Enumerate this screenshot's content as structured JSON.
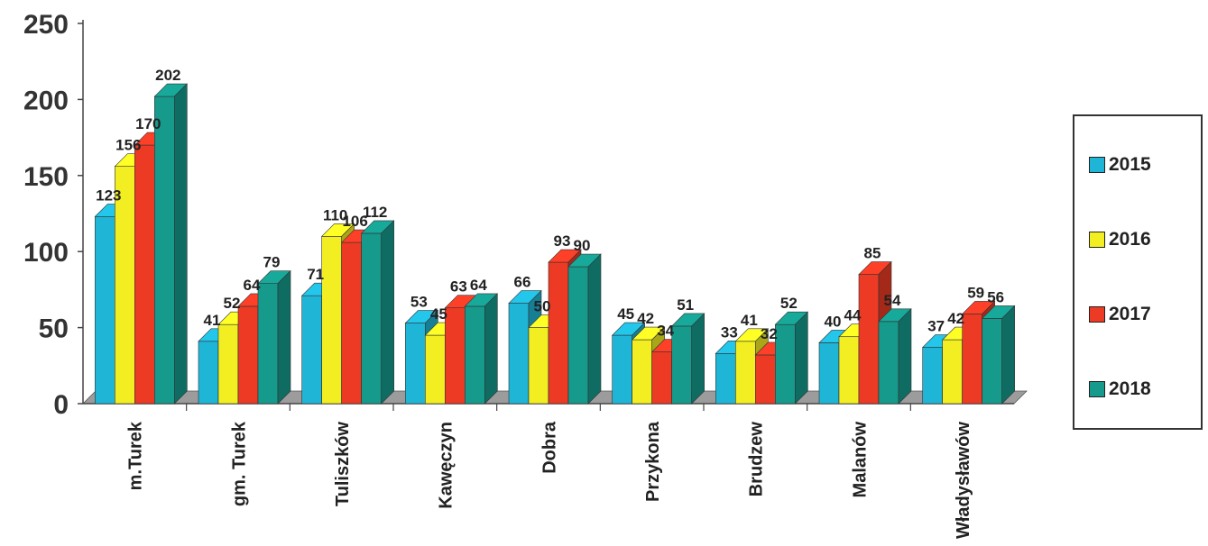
{
  "chart_data": {
    "type": "bar",
    "title": "",
    "xlabel": "",
    "ylabel": "",
    "ylim": [
      0,
      250
    ],
    "yticks": [
      "0",
      "50",
      "100",
      "150",
      "200",
      "250"
    ],
    "categories": [
      "m.Turek",
      "gm. Turek",
      "Tuliszków",
      "Kawęczyn",
      "Dobra",
      "Przykona",
      "Brudzew",
      "Malanów",
      "Władysławów"
    ],
    "series": [
      {
        "name": "2015",
        "color": "#1fb5d6",
        "values": [
          123,
          41,
          71,
          53,
          66,
          45,
          33,
          40,
          37
        ]
      },
      {
        "name": "2016",
        "color": "#f2ee22",
        "values": [
          156,
          52,
          110,
          45,
          50,
          42,
          41,
          44,
          42
        ]
      },
      {
        "name": "2017",
        "color": "#ec3a24",
        "values": [
          170,
          64,
          106,
          63,
          93,
          34,
          32,
          85,
          59
        ]
      },
      {
        "name": "2018",
        "color": "#159a8c",
        "values": [
          202,
          79,
          112,
          64,
          90,
          51,
          52,
          54,
          56
        ]
      }
    ],
    "grid": false,
    "legend_position": "right"
  }
}
